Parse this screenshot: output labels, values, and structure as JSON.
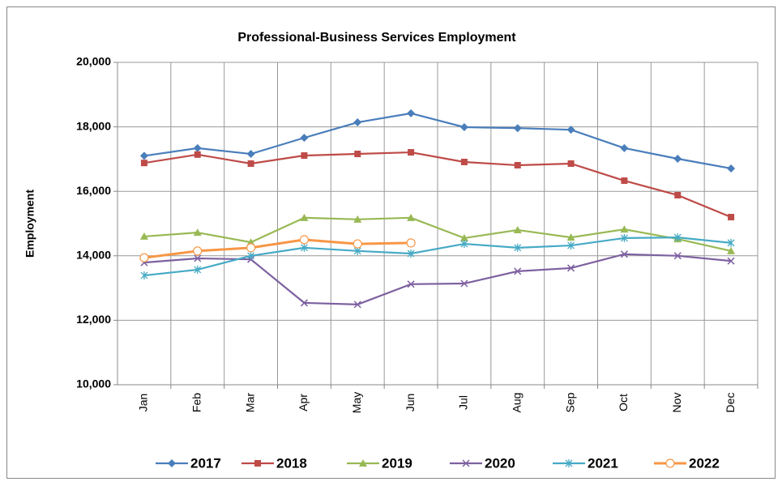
{
  "chart_data": {
    "type": "line",
    "title": "Professional-Business Services Employment",
    "y_label": "Employment",
    "categories": [
      "Jan",
      "Feb",
      "Mar",
      "Apr",
      "May",
      "Jun",
      "Jul",
      "Aug",
      "Sep",
      "Oct",
      "Nov",
      "Dec"
    ],
    "series": [
      {
        "name": "2017",
        "color": "#4a7ebb",
        "marker": "diamond",
        "values": [
          17100,
          17340,
          17160,
          17660,
          18140,
          18420,
          17990,
          17960,
          17910,
          17340,
          17010,
          16710
        ]
      },
      {
        "name": "2018",
        "color": "#be4b48",
        "marker": "square",
        "values": [
          16880,
          17140,
          16860,
          17110,
          17160,
          17210,
          16910,
          16810,
          16860,
          16330,
          15880,
          15200
        ]
      },
      {
        "name": "2019",
        "color": "#98b954",
        "marker": "triangle",
        "values": [
          14600,
          14720,
          14420,
          15180,
          15130,
          15180,
          14550,
          14800,
          14570,
          14820,
          14520,
          14150
        ]
      },
      {
        "name": "2020",
        "color": "#7d60a0",
        "marker": "x",
        "values": [
          13790,
          13920,
          13890,
          12540,
          12490,
          13120,
          13140,
          13520,
          13620,
          14050,
          14000,
          13840
        ]
      },
      {
        "name": "2021",
        "color": "#46aac5",
        "marker": "asterisk",
        "values": [
          13390,
          13570,
          14000,
          14250,
          14150,
          14070,
          14370,
          14250,
          14320,
          14550,
          14570,
          14400
        ]
      },
      {
        "name": "2022",
        "color": "#f79646",
        "marker": "circle",
        "values": [
          13940,
          14150,
          14250,
          14500,
          14370,
          14400,
          null,
          null,
          null,
          null,
          null,
          null
        ]
      }
    ],
    "ylim": [
      10000,
      20000
    ],
    "yticks": [
      {
        "value": 10000,
        "label": "10,000"
      },
      {
        "value": 12000,
        "label": "12,000"
      },
      {
        "value": 14000,
        "label": "14,000"
      },
      {
        "value": 16000,
        "label": "16,000"
      },
      {
        "value": 18000,
        "label": "18,000"
      },
      {
        "value": 20000,
        "label": "20,000"
      }
    ],
    "grid": true,
    "legend": "bottom"
  }
}
